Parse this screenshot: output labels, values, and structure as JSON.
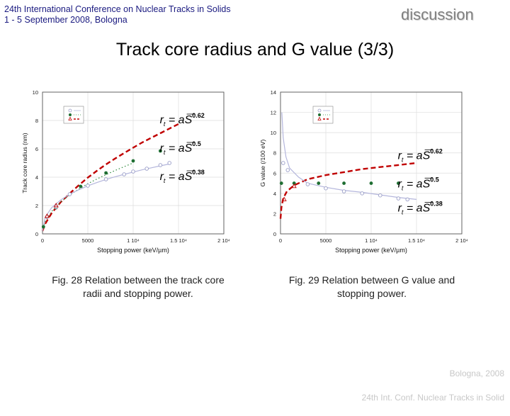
{
  "header": {
    "conference": "24th International Conference on Nuclear Tracks in Solids\n 1 - 5 September 2008, Bologna",
    "section": "discussion"
  },
  "slide": {
    "title": "Track core radius and G value (3/3)"
  },
  "chart_data": [
    {
      "type": "scatter",
      "xlabel": "Stopping power (keV/µm)",
      "ylabel": "Track core radius (nm)",
      "xlim": [
        0,
        20000
      ],
      "ylim": [
        0,
        10
      ],
      "xticks": [
        {
          "v": 0,
          "label": "0"
        },
        {
          "v": 5000,
          "label": "5000"
        },
        {
          "v": 10000,
          "label": "1 10⁴"
        },
        {
          "v": 15000,
          "label": "1.5 10⁴"
        },
        {
          "v": 20000,
          "label": "2 10⁴"
        }
      ],
      "yticks": [
        {
          "v": 0,
          "label": "0"
        },
        {
          "v": 2,
          "label": "2"
        },
        {
          "v": 4,
          "label": "4"
        },
        {
          "v": 6,
          "label": "6"
        },
        {
          "v": 8,
          "label": "8"
        },
        {
          "v": 10,
          "label": "10"
        }
      ],
      "grid": true,
      "legend": "top-left",
      "series": [
        {
          "kind": "curve",
          "exponent": 0.62,
          "a": 0.0207,
          "style": "dashed",
          "color": "#c00000",
          "points": [
            [
              0,
              0.2
            ],
            [
              300,
              0.71
            ],
            [
              1000,
              1.45
            ],
            [
              2000,
              2.23
            ],
            [
              3000,
              2.85
            ],
            [
              4000,
              3.43
            ],
            [
              5000,
              3.97
            ],
            [
              6000,
              4.45
            ],
            [
              7000,
              4.9
            ],
            [
              8000,
              5.31
            ],
            [
              9000,
              5.7
            ],
            [
              10000,
              6.08
            ],
            [
              11000,
              6.45
            ],
            [
              12000,
              6.78
            ],
            [
              13000,
              7.1
            ],
            [
              14000,
              7.43
            ],
            [
              15000,
              7.75
            ]
          ]
        },
        {
          "kind": "curve",
          "exponent": 0.5,
          "a": 0.05,
          "style": "dotted",
          "color": "#2d8a3c",
          "points": [
            [
              0,
              0.2
            ],
            [
              300,
              0.87
            ],
            [
              1000,
              1.58
            ],
            [
              2000,
              2.24
            ],
            [
              3000,
              2.74
            ],
            [
              4000,
              3.16
            ],
            [
              5000,
              3.54
            ],
            [
              6000,
              3.87
            ],
            [
              7000,
              4.18
            ],
            [
              8000,
              4.47
            ],
            [
              9000,
              4.74
            ],
            [
              10000,
              5.0
            ]
          ]
        },
        {
          "kind": "curve",
          "exponent": 0.38,
          "a": 0.134,
          "style": "solid",
          "color": "#b4b6dc",
          "points": [
            [
              0,
              0.2
            ],
            [
              300,
              1.17
            ],
            [
              1000,
              1.84
            ],
            [
              2000,
              2.39
            ],
            [
              3000,
              2.8
            ],
            [
              4000,
              3.11
            ],
            [
              5000,
              3.39
            ],
            [
              6000,
              3.62
            ],
            [
              7000,
              3.84
            ],
            [
              8000,
              4.03
            ],
            [
              9000,
              4.2
            ],
            [
              10000,
              4.36
            ],
            [
              11000,
              4.52
            ],
            [
              12000,
              4.66
            ],
            [
              13000,
              4.8
            ],
            [
              14000,
              4.93
            ]
          ]
        },
        {
          "kind": "points",
          "marker": "filled-circle",
          "color": "#1e6e32",
          "points": [
            [
              100,
              0.5
            ],
            [
              1500,
              1.85
            ],
            [
              4200,
              3.35
            ],
            [
              7000,
              4.3
            ],
            [
              10000,
              5.15
            ],
            [
              13000,
              5.85
            ]
          ]
        },
        {
          "kind": "points",
          "marker": "open-circle",
          "color": "#9a9ec8",
          "points": [
            [
              500,
              1.2
            ],
            [
              1500,
              1.9
            ],
            [
              3000,
              2.8
            ],
            [
              5000,
              3.4
            ],
            [
              7000,
              3.85
            ],
            [
              9000,
              4.2
            ],
            [
              10000,
              4.4
            ],
            [
              11500,
              4.6
            ],
            [
              13000,
              4.85
            ],
            [
              14000,
              5.0
            ]
          ]
        },
        {
          "kind": "points",
          "marker": "open-triangle",
          "color": "#c00000",
          "points": [
            [
              500,
              1.25
            ],
            [
              1500,
              2.0
            ]
          ]
        }
      ],
      "equations": [
        {
          "exponent": "0.62",
          "at": [
            14500,
            7.8
          ]
        },
        {
          "exponent": "0.5",
          "at": [
            14500,
            5.8
          ]
        },
        {
          "exponent": "0.38",
          "at": [
            14500,
            3.8
          ]
        }
      ]
    },
    {
      "type": "scatter",
      "xlabel": "Stopping power (keV/µm)",
      "ylabel": "G value (/100 eV)",
      "xlim": [
        0,
        20000
      ],
      "ylim": [
        0,
        14
      ],
      "xticks": [
        {
          "v": 0,
          "label": "0"
        },
        {
          "v": 5000,
          "label": "5000"
        },
        {
          "v": 10000,
          "label": "1 10⁴"
        },
        {
          "v": 15000,
          "label": "1.5 10⁴"
        },
        {
          "v": 20000,
          "label": "2 10⁴"
        }
      ],
      "yticks": [
        {
          "v": 0,
          "label": "0"
        },
        {
          "v": 2,
          "label": "2"
        },
        {
          "v": 4,
          "label": "4"
        },
        {
          "v": 6,
          "label": "6"
        },
        {
          "v": 8,
          "label": "8"
        },
        {
          "v": 10,
          "label": "10"
        },
        {
          "v": 12,
          "label": "12"
        },
        {
          "v": 14,
          "label": "14"
        }
      ],
      "grid": true,
      "legend": "top-right",
      "series": [
        {
          "kind": "curve",
          "exponent": 0.62,
          "style": "dashed",
          "color": "#c00000",
          "points": [
            [
              0,
              1.5
            ],
            [
              100,
              2.6
            ],
            [
              300,
              3.5
            ],
            [
              700,
              4.2
            ],
            [
              1500,
              4.8
            ],
            [
              3000,
              5.4
            ],
            [
              5000,
              5.8
            ],
            [
              7000,
              6.1
            ],
            [
              9000,
              6.4
            ],
            [
              11000,
              6.6
            ],
            [
              13000,
              6.8
            ],
            [
              15000,
              7.0
            ]
          ]
        },
        {
          "kind": "curve",
          "exponent": 0.38,
          "style": "solid",
          "color": "#b4b6dc",
          "points": [
            [
              150,
              12.0
            ],
            [
              300,
              9.5
            ],
            [
              600,
              7.6
            ],
            [
              1000,
              6.5
            ],
            [
              2000,
              5.6
            ],
            [
              3000,
              5.0
            ],
            [
              5000,
              4.6
            ],
            [
              7000,
              4.3
            ],
            [
              9000,
              4.1
            ],
            [
              11000,
              3.85
            ],
            [
              13000,
              3.6
            ],
            [
              15000,
              3.4
            ]
          ]
        },
        {
          "kind": "points",
          "marker": "filled-circle",
          "color": "#1e6e32",
          "points": [
            [
              100,
              5.0
            ],
            [
              1500,
              5.0
            ],
            [
              4200,
              5.0
            ],
            [
              7000,
              5.0
            ],
            [
              10000,
              5.0
            ],
            [
              13000,
              5.0
            ]
          ]
        },
        {
          "kind": "points",
          "marker": "open-circle",
          "color": "#9a9ec8",
          "points": [
            [
              300,
              7.0
            ],
            [
              800,
              6.3
            ],
            [
              3000,
              4.9
            ],
            [
              5000,
              4.5
            ],
            [
              7000,
              4.2
            ],
            [
              9000,
              4.0
            ],
            [
              11000,
              3.8
            ],
            [
              13000,
              3.5
            ],
            [
              14000,
              3.4
            ]
          ]
        },
        {
          "kind": "points",
          "marker": "open-triangle",
          "color": "#c00000",
          "points": [
            [
              400,
              3.4
            ],
            [
              1500,
              4.7
            ]
          ]
        }
      ],
      "equations": [
        {
          "exponent": "0.62",
          "at": [
            14500,
            7.4
          ]
        },
        {
          "exponent": "0.5",
          "at": [
            14500,
            4.6
          ]
        },
        {
          "exponent": "0.38",
          "at": [
            14500,
            2.2
          ]
        }
      ]
    }
  ],
  "captions": {
    "left": "Fig. 28 Relation between the track core radii and stopping power.",
    "right": "Fig. 29 Relation between G value and stopping power."
  },
  "footer": {
    "location": "Bologna,  2008",
    "conference": "24th Int. Conf. Nuclear Tracks in Solid"
  }
}
